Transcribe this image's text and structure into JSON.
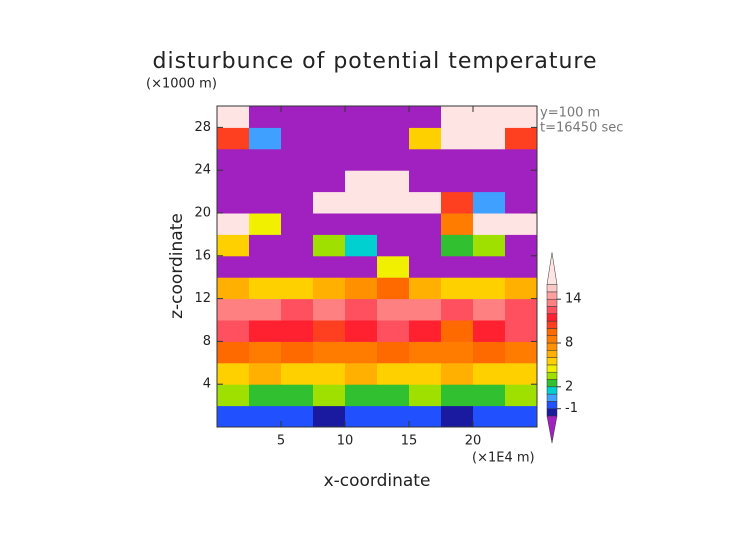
{
  "chart_data": {
    "type": "heatmap",
    "title": "disturbunce of potential temperature",
    "y_unit": "(×1000 m)",
    "x_unit": "(×1E4 m)",
    "annotations": [
      "y=100 m",
      "t=16450 sec"
    ],
    "xlabel": "x-coordinate",
    "ylabel": "z-coordinate",
    "xbins": [
      0,
      2.5,
      5,
      7.5,
      10,
      12.5,
      15,
      17.5,
      20,
      22.5,
      25
    ],
    "ybins": [
      0,
      2,
      4,
      6,
      8,
      10,
      12,
      14,
      16,
      18,
      20,
      22,
      24,
      26,
      28,
      30
    ],
    "z": [
      [
        -1,
        -1,
        -1,
        -2,
        -1,
        -1,
        -1,
        -2,
        -1,
        -1
      ],
      [
        3,
        2,
        2,
        3,
        2,
        2,
        3,
        2,
        2,
        3
      ],
      [
        5,
        6,
        5,
        5,
        6,
        5,
        5,
        6,
        5,
        5
      ],
      [
        9,
        8,
        9,
        8,
        8,
        9,
        8,
        8,
        9,
        8
      ],
      [
        12,
        11,
        11,
        10,
        11,
        12,
        11,
        9,
        11,
        12
      ],
      [
        13,
        13,
        12,
        13,
        12,
        13,
        13,
        12,
        13,
        12
      ],
      [
        6,
        5,
        5,
        6,
        7,
        9,
        6,
        5,
        5,
        6
      ],
      [
        -3,
        -3,
        -3,
        -3,
        -3,
        4,
        -3,
        -3,
        -3,
        -3
      ],
      [
        5,
        -3,
        -3,
        3,
        1,
        -3,
        -3,
        2,
        3,
        -3
      ],
      [
        16,
        4,
        -3,
        -3,
        -3,
        -3,
        -3,
        8,
        16,
        16
      ],
      [
        -3,
        -3,
        -3,
        16,
        16,
        16,
        16,
        10,
        0,
        -3
      ],
      [
        -3,
        -3,
        -3,
        -3,
        16,
        16,
        -3,
        -3,
        -3,
        -3
      ],
      [
        -3,
        -3,
        -3,
        -3,
        -3,
        -3,
        -3,
        -3,
        -3,
        -3
      ],
      [
        10,
        0,
        -3,
        -3,
        -3,
        -3,
        5,
        16,
        16,
        10
      ],
      [
        16,
        -3,
        -3,
        -3,
        -3,
        -3,
        -3,
        16,
        16,
        16
      ]
    ],
    "xlim": [
      0,
      25
    ],
    "ylim": [
      0,
      30
    ],
    "xticks": [
      5,
      10,
      15,
      20
    ],
    "yticks": [
      4,
      8,
      12,
      16,
      20,
      24,
      28
    ],
    "colorbar": {
      "levels": [
        -2,
        -1,
        0,
        1,
        2,
        3,
        4,
        5,
        6,
        7,
        8,
        9,
        10,
        11,
        12,
        13,
        14,
        15,
        16
      ],
      "colors": [
        "#1a1aa0",
        "#2050ff",
        "#40a0ff",
        "#00d0d0",
        "#30c030",
        "#a0e000",
        "#f0f000",
        "#ffd000",
        "#ffb000",
        "#ff9000",
        "#ff7c00",
        "#ff6a00",
        "#ff4020",
        "#ff2030",
        "#ff5060",
        "#ff8080",
        "#ffa0a0",
        "#ffc8c8"
      ],
      "under_color": "#a020c0",
      "over_color": "#ffe4e4",
      "ticks": [
        -1,
        2,
        8,
        14
      ]
    }
  }
}
